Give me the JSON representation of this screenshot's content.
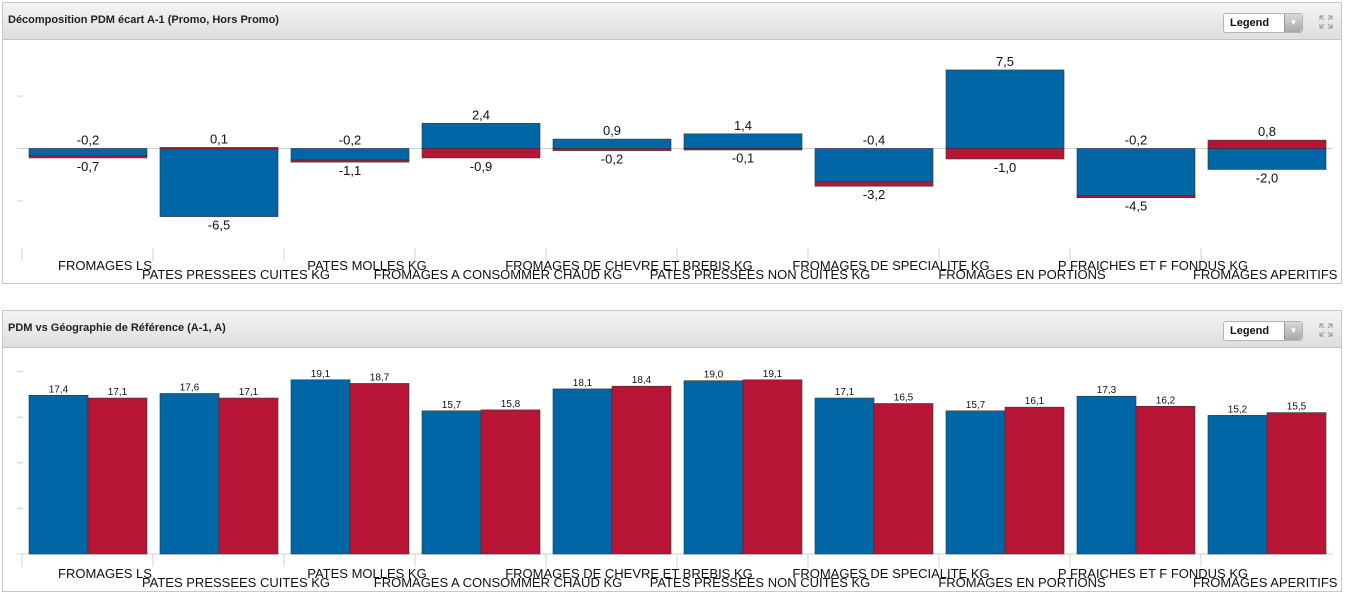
{
  "panels": [
    {
      "title": "Décomposition PDM écart A-1 (Promo, Hors Promo)",
      "legend_label": "Legend",
      "legend_arrow_icon": "chevron-down-icon",
      "expand_icon": "expand-icon"
    },
    {
      "title": "PDM vs Géographie de Référence (A-1, A)",
      "legend_label": "Legend",
      "legend_arrow_icon": "chevron-down-icon",
      "expand_icon": "expand-icon"
    }
  ],
  "colors": {
    "blue": "#0066a6",
    "red": "#b81536",
    "grid": "#d0d0d0"
  },
  "chart_data": [
    {
      "type": "bar",
      "stacked": true,
      "categories": [
        "FROMAGES LS",
        "PATES PRESSEES CUITES KG",
        "PATES MOLLES KG",
        "FROMAGES A CONSOMMER CHAUD KG",
        "FROMAGES DE CHEVRE ET BREBIS KG",
        "PATES PRESSEES NON CUITES KG",
        "FROMAGES DE SPECIALITE KG",
        "FROMAGES EN PORTIONS",
        "P FRAICHES ET F FONDUS KG",
        "FROMAGES APERITIFS / DES"
      ],
      "series": [
        {
          "values": [
            -0.7,
            -6.5,
            -1.1,
            2.4,
            0.9,
            1.4,
            -3.2,
            7.5,
            -4.5,
            -2.0
          ]
        },
        {
          "values": [
            -0.2,
            0.1,
            -0.2,
            -0.9,
            -0.2,
            -0.1,
            -0.4,
            -1.0,
            -0.2,
            0.8
          ]
        }
      ],
      "value_labels": [
        {
          "top": "-0,2",
          "bottom": "-0,7"
        },
        {
          "top": "0,1",
          "bottom": "-6,5"
        },
        {
          "top": "-0,2",
          "bottom": "-1,1"
        },
        {
          "top": "2,4",
          "bottom": "-0,9"
        },
        {
          "top": "0,9",
          "bottom": "-0,2"
        },
        {
          "top": "1,4",
          "bottom": "-0,1"
        },
        {
          "top": "-0,4",
          "bottom": "-3,2"
        },
        {
          "top": "7,5",
          "bottom": "-1,0"
        },
        {
          "top": "-0,2",
          "bottom": "-4,5"
        },
        {
          "top": "0,8",
          "bottom": "-2,0"
        }
      ],
      "ylim": [
        -9.5,
        9.5
      ],
      "yticks": [
        -5,
        0,
        5
      ],
      "grid": false,
      "legend": "hidden"
    },
    {
      "type": "bar",
      "categories": [
        "FROMAGES LS",
        "PATES PRESSEES CUITES KG",
        "PATES MOLLES KG",
        "FROMAGES A CONSOMMER CHAUD KG",
        "FROMAGES DE CHEVRE ET BREBIS KG",
        "PATES PRESSEES NON CUITES KG",
        "FROMAGES DE SPECIALITE KG",
        "FROMAGES EN PORTIONS",
        "P FRAICHES ET F FONDUS KG",
        "FROMAGES APERITIFS / DES"
      ],
      "series": [
        {
          "values": [
            17.4,
            17.6,
            19.1,
            15.7,
            18.1,
            19.0,
            17.1,
            15.7,
            17.3,
            15.2
          ]
        },
        {
          "values": [
            17.1,
            17.1,
            18.7,
            15.8,
            18.4,
            19.1,
            16.5,
            16.1,
            16.2,
            15.5
          ]
        }
      ],
      "value_labels": [
        [
          "17,4",
          "17,1"
        ],
        [
          "17,6",
          "17,1"
        ],
        [
          "19,1",
          "18,7"
        ],
        [
          "15,7",
          "15,8"
        ],
        [
          "18,1",
          "18,4"
        ],
        [
          "19,0",
          "19,1"
        ],
        [
          "17,1",
          "16,5"
        ],
        [
          "15,7",
          "16,1"
        ],
        [
          "17,3",
          "16,2"
        ],
        [
          "15,2",
          "15,5"
        ]
      ],
      "ylim": [
        0,
        21.6
      ],
      "yticks": [
        0,
        5,
        10,
        15,
        20
      ],
      "grid": false,
      "legend": "hidden"
    }
  ]
}
